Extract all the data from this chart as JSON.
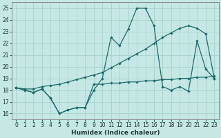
{
  "xlabel": "Humidex (Indice chaleur)",
  "xlim": [
    -0.5,
    23.5
  ],
  "ylim": [
    15.5,
    25.5
  ],
  "yticks": [
    16,
    17,
    18,
    19,
    20,
    21,
    22,
    23,
    24,
    25
  ],
  "xticks": [
    0,
    1,
    2,
    3,
    4,
    5,
    6,
    7,
    8,
    9,
    10,
    11,
    12,
    13,
    14,
    15,
    16,
    17,
    18,
    19,
    20,
    21,
    22,
    23
  ],
  "bg_color": "#c5e8e5",
  "grid_color": "#aed4d0",
  "line_color": "#1a6b6b",
  "line1_x": [
    0,
    1,
    2,
    3,
    4,
    5,
    6,
    7,
    8,
    9,
    10,
    11,
    12,
    13,
    14,
    15,
    16,
    17,
    18,
    19,
    20,
    21,
    22,
    23
  ],
  "line1_y": [
    18.2,
    18.0,
    17.8,
    18.1,
    17.3,
    16.0,
    16.3,
    16.5,
    16.5,
    18.0,
    19.0,
    22.5,
    21.8,
    23.2,
    25.0,
    25.0,
    23.5,
    18.3,
    18.0,
    18.3,
    17.9,
    22.2,
    19.8,
    19.0
  ],
  "line2_x": [
    0,
    1,
    2,
    3,
    4,
    5,
    6,
    7,
    8,
    9,
    10,
    11,
    12,
    13,
    14,
    15,
    16,
    17,
    18,
    19,
    20,
    21,
    22,
    23
  ],
  "line2_y": [
    18.2,
    18.1,
    18.1,
    18.3,
    18.4,
    18.5,
    18.7,
    18.9,
    19.1,
    19.3,
    19.5,
    19.9,
    20.3,
    20.7,
    21.1,
    21.5,
    22.0,
    22.5,
    22.9,
    23.3,
    23.5,
    23.3,
    22.8,
    19.0
  ],
  "line3_x": [
    0,
    1,
    2,
    3,
    4,
    5,
    6,
    7,
    8,
    9,
    10,
    11,
    12,
    13,
    14,
    15,
    16,
    17,
    18,
    19,
    20,
    21,
    22,
    23
  ],
  "line3_y": [
    18.2,
    18.0,
    17.8,
    18.1,
    17.3,
    16.0,
    16.3,
    16.5,
    16.5,
    18.5,
    18.5,
    18.6,
    18.6,
    18.7,
    18.7,
    18.8,
    18.8,
    18.9,
    18.9,
    19.0,
    19.0,
    19.1,
    19.1,
    19.2
  ]
}
